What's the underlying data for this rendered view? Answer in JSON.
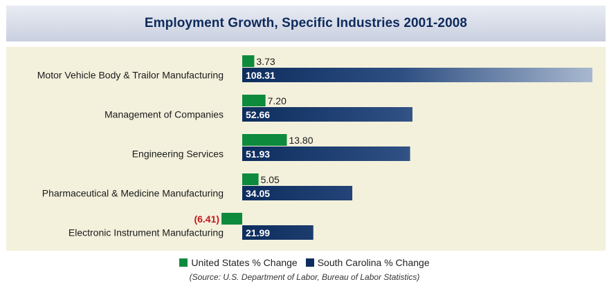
{
  "chart_data": {
    "type": "bar",
    "title": "Employment Growth, Specific Industries 2001-2008",
    "categories": [
      "Motor Vehicle Body & Trailor Manufacturing",
      "Management of Companies",
      "Engineering Services",
      "Pharmaceutical & Medicine Manufacturing",
      "Electronic Instrument Manufacturing"
    ],
    "series": [
      {
        "name": "United States % Change",
        "color": "#0e8a3c",
        "values": [
          3.73,
          7.2,
          13.8,
          5.05,
          -6.41
        ],
        "labels": [
          "3.73",
          "7.20",
          "13.80",
          "5.05",
          "(6.41)"
        ]
      },
      {
        "name": "South Carolina % Change",
        "color": "#0d2d5e",
        "values": [
          108.31,
          52.66,
          51.93,
          34.05,
          21.99
        ],
        "labels": [
          "108.31",
          "52.66",
          "51.93",
          "34.05",
          "21.99"
        ]
      }
    ],
    "negative_label_color": "#c8161d",
    "orientation": "horizontal",
    "legend_position": "bottom",
    "grid": false
  },
  "source": "(Source: U.S. Department of Labor, Bureau of Labor Statistics)"
}
